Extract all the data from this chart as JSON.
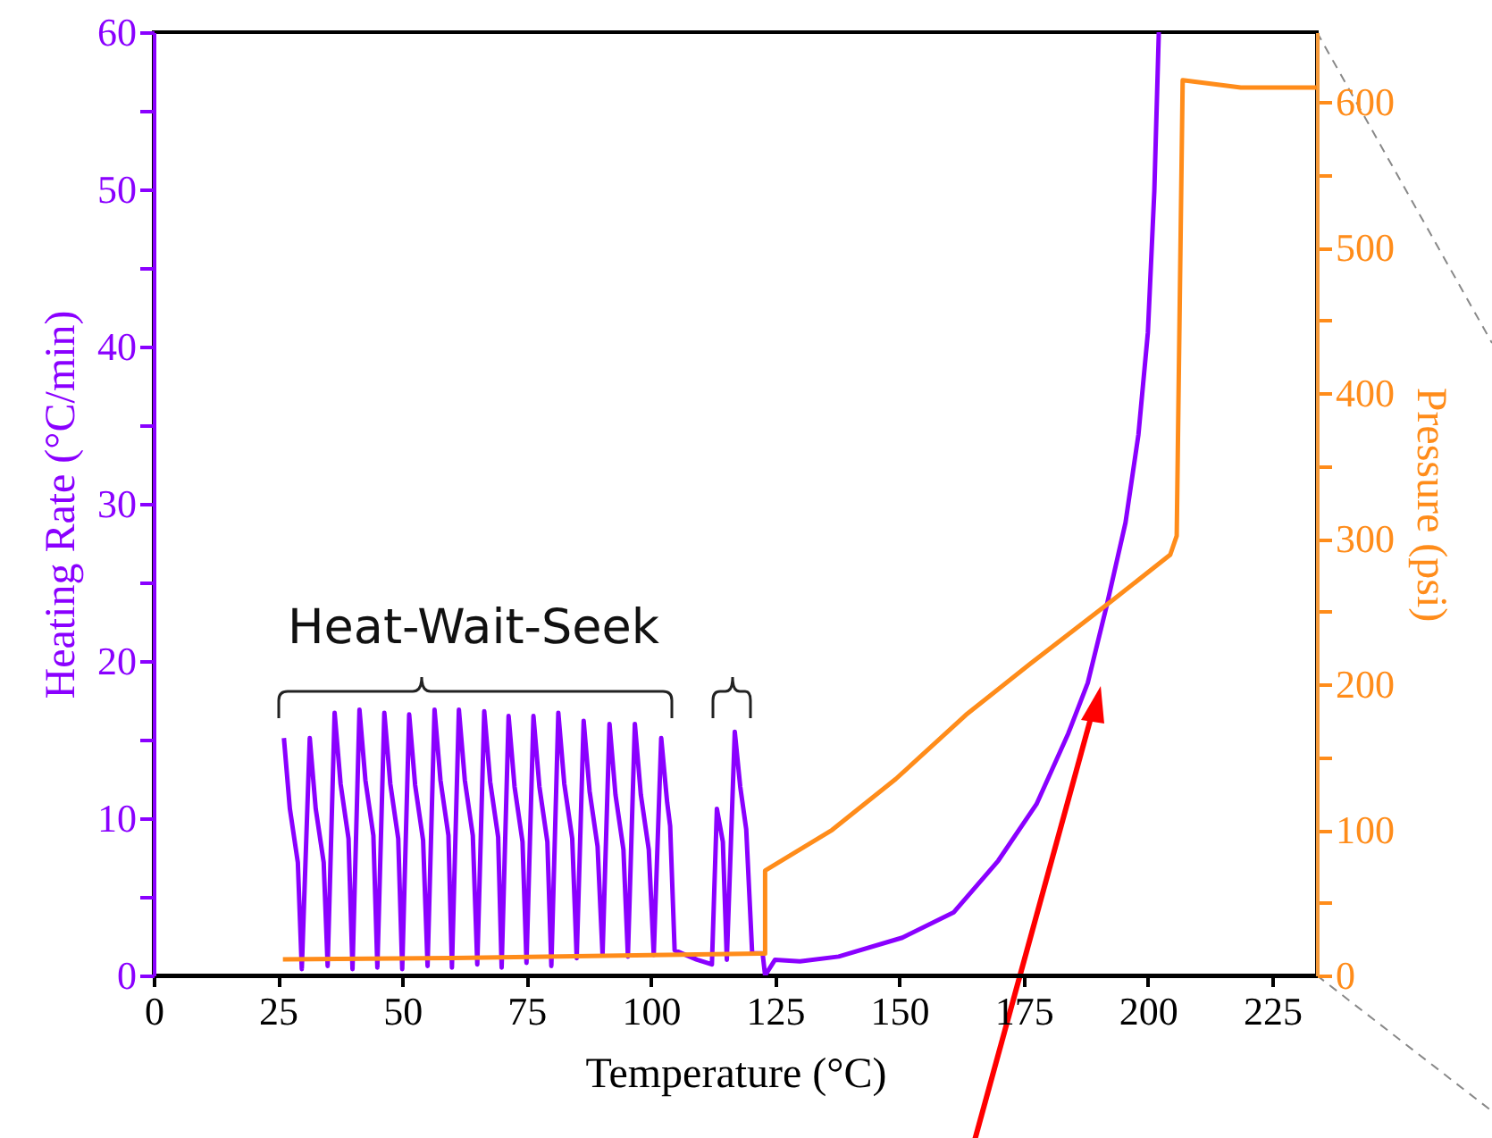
{
  "chart_data": {
    "type": "line",
    "xlabel": "Temperature (°C)",
    "ylabel": "Heating Rate (°C/min)",
    "y2label": "Pressure (psi)",
    "annotations": [
      "Heat-Wait-Seek"
    ],
    "xlim": [
      0,
      234
    ],
    "xticks": [
      0,
      25,
      50,
      75,
      100,
      125,
      150,
      175,
      200,
      225
    ],
    "ylim": [
      0,
      60
    ],
    "yticks": [
      0,
      {
        "value": 5,
        "label": null
      },
      10,
      {
        "value": 15,
        "label": null
      },
      20,
      {
        "value": 25,
        "label": null
      },
      30,
      {
        "value": 35,
        "label": null
      },
      40,
      {
        "value": 45,
        "label": null
      },
      50,
      {
        "value": 55,
        "label": null
      },
      60
    ],
    "y2lim": [
      0,
      648
    ],
    "y2ticks": [
      0,
      {
        "value": 50,
        "label": null
      },
      100,
      {
        "value": 150,
        "label": null
      },
      200,
      {
        "value": 250,
        "label": null
      },
      300,
      {
        "value": 350,
        "label": null
      },
      400,
      {
        "value": 450,
        "label": null
      },
      500,
      {
        "value": 550,
        "label": null
      },
      600
    ],
    "series": [
      {
        "color": "#8a00ff",
        "x": [
          26.2,
          27.4,
          29.0,
          29.8,
          31.4,
          32.6,
          34.2,
          35.0,
          36.4,
          37.6,
          39.2,
          40.0,
          41.4,
          42.6,
          44.2,
          45.0,
          46.4,
          47.6,
          49.2,
          50.0,
          51.4,
          52.6,
          54.2,
          55.1,
          56.5,
          57.7,
          59.3,
          60.0,
          61.4,
          62.6,
          64.2,
          65.1,
          66.5,
          67.7,
          69.3,
          70.0,
          71.4,
          72.6,
          74.2,
          75.0,
          76.4,
          77.6,
          79.2,
          80.0,
          81.4,
          82.6,
          84.2,
          85.1,
          86.5,
          87.7,
          89.3,
          90.3,
          91.7,
          92.9,
          94.5,
          95.4,
          96.8,
          98.0,
          99.6,
          100.6,
          102.1,
          103.3,
          103.9,
          104.8,
          109.3,
          112.3,
          113.3,
          114.5,
          115.3,
          116.9,
          118.0,
          119.2,
          120.4,
          122.5,
          123.0,
          125,
          130,
          137.8,
          150.6,
          160.9,
          169.9,
          177.6,
          184,
          187.9,
          191.7,
          195.5,
          198.1,
          200,
          201.3,
          202.2
        ],
        "values": [
          15.1,
          10.6,
          7.2,
          0.4,
          15.1,
          10.6,
          7.2,
          0.6,
          16.7,
          12.2,
          8.7,
          0.4,
          16.9,
          12.4,
          8.9,
          0.5,
          16.7,
          12.2,
          8.7,
          0.4,
          16.6,
          12.1,
          8.6,
          0.6,
          16.9,
          12.4,
          8.9,
          0.5,
          16.9,
          12.4,
          8.9,
          0.7,
          16.8,
          12.3,
          8.8,
          0.5,
          16.5,
          12.0,
          8.5,
          0.8,
          16.5,
          12.0,
          8.5,
          0.6,
          16.7,
          12.2,
          8.7,
          1.1,
          16.2,
          11.7,
          8.2,
          1.3,
          16.0,
          11.5,
          8.0,
          1.2,
          16.0,
          11.5,
          8.0,
          1.3,
          15.1,
          11.0,
          9.5,
          1.6,
          1.0,
          0.7,
          10.6,
          8.5,
          1.0,
          15.5,
          12.0,
          9.3,
          1.4,
          1.4,
          0.0,
          1.0,
          0.9,
          1.2,
          2.4,
          4.0,
          7.3,
          10.9,
          15.4,
          18.6,
          23.5,
          28.8,
          34.4,
          40.9,
          49.9,
          60
        ]
      },
      {
        "color": "#ff8c1a",
        "axis": "y2",
        "x": [
          26,
          60,
          100,
          122,
          123,
          123,
          136.5,
          149.3,
          163.4,
          176.3,
          193,
          204.5,
          205.8,
          207,
          218.7,
          234
        ],
        "values": [
          11,
          12,
          14,
          15,
          15,
          72,
          100,
          135,
          179,
          214,
          258,
          289,
          302,
          615,
          610,
          610
        ]
      }
    ]
  }
}
